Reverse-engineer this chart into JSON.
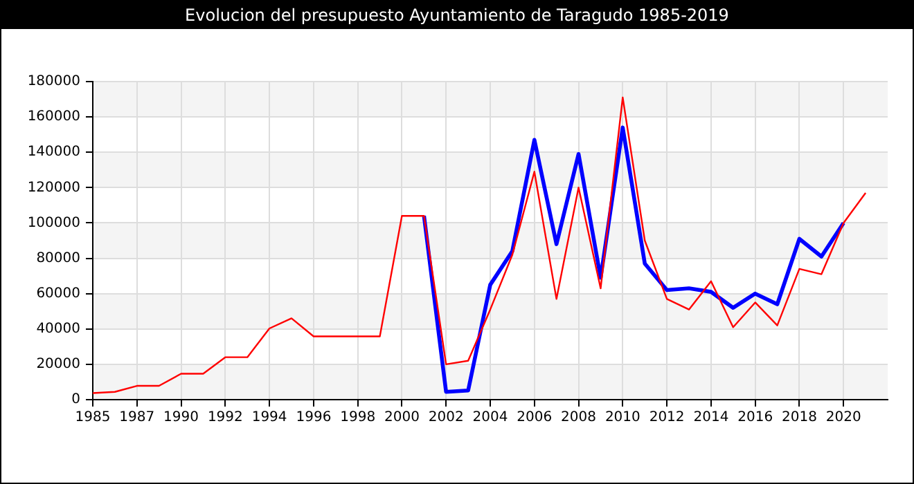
{
  "chart_data": {
    "type": "line",
    "title": "Evolucion del presupuesto Ayuntamiento de Taragudo 1985-2019",
    "categories": [
      "1985",
      null,
      "1987",
      null,
      "1990",
      null,
      "1992",
      null,
      "1994",
      null,
      "1996",
      null,
      "1998",
      null,
      "2000",
      null,
      "2002",
      null,
      "2004",
      null,
      "2006",
      null,
      "2008",
      null,
      "2010",
      null,
      "2012",
      null,
      "2014",
      null,
      "2016",
      null,
      "2018",
      null,
      "2020",
      null,
      null
    ],
    "series": [
      {
        "color": "#ff0000",
        "values": [
          3700,
          4400,
          7800,
          7800,
          14700,
          14700,
          24000,
          24000,
          40300,
          46000,
          35800,
          35800,
          35800,
          35800,
          104000,
          104000,
          20000,
          22000,
          51000,
          82000,
          129000,
          57000,
          120000,
          63000,
          171000,
          90000,
          57000,
          51000,
          67000,
          41000,
          55000,
          42000,
          74000,
          71000,
          100000,
          117000,
          null
        ]
      },
      {
        "color": "#0000ff",
        "values": [
          null,
          null,
          null,
          null,
          null,
          null,
          null,
          null,
          null,
          null,
          null,
          null,
          null,
          null,
          null,
          104000,
          4400,
          5200,
          65000,
          84000,
          147000,
          88000,
          139000,
          69000,
          154000,
          77000,
          62000,
          63000,
          61000,
          52000,
          60000,
          54000,
          91000,
          81000,
          100000,
          null,
          null
        ]
      }
    ],
    "ylim": [
      0,
      180000
    ],
    "yticks": [
      0,
      20000,
      40000,
      60000,
      80000,
      100000,
      120000,
      140000,
      160000,
      180000
    ],
    "grid": true,
    "legend": false,
    "marker": "none",
    "line_style": "solid"
  }
}
